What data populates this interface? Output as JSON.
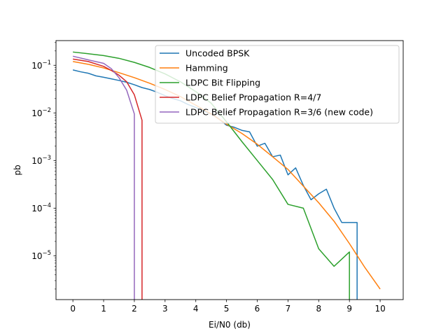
{
  "chart_data": {
    "type": "line",
    "title": "",
    "xlabel": "Ei/N0 (db)",
    "ylabel": "pb",
    "xlim": [
      -0.55,
      10.75
    ],
    "ylim": [
      1.2e-06,
      0.33
    ],
    "yscale": "log",
    "grid": false,
    "legend_position": "top-right",
    "xticks": [
      "0",
      "1",
      "2",
      "3",
      "4",
      "5",
      "6",
      "7",
      "8",
      "9",
      "10"
    ],
    "yticks": [
      {
        "value": 0.1,
        "base": "10",
        "exp": "−1"
      },
      {
        "value": 0.01,
        "base": "10",
        "exp": "−2"
      },
      {
        "value": 0.001,
        "base": "10",
        "exp": "−3"
      },
      {
        "value": 0.0001,
        "base": "10",
        "exp": "−4"
      },
      {
        "value": 1e-05,
        "base": "10",
        "exp": "−5"
      }
    ],
    "series": [
      {
        "name": "Uncoded BPSK",
        "color": "#1f77b4",
        "x": [
          0,
          0.25,
          0.5,
          0.75,
          1.0,
          1.25,
          1.5,
          1.75,
          2.0,
          2.25,
          2.5,
          2.75,
          3.0,
          3.25,
          3.5,
          3.75,
          4.0,
          4.25,
          4.5,
          4.75,
          5.0,
          5.25,
          5.5,
          5.75,
          6.0,
          6.25,
          6.5,
          6.75,
          7.0,
          7.25,
          7.5,
          7.75,
          8.0,
          8.25,
          8.5,
          8.75,
          9.0,
          9.25,
          9.25
        ],
        "y": [
          0.08,
          0.073,
          0.068,
          0.06,
          0.056,
          0.052,
          0.048,
          0.044,
          0.039,
          0.034,
          0.031,
          0.027,
          0.023,
          0.02,
          0.018,
          0.015,
          0.013,
          0.011,
          0.0095,
          0.0075,
          0.0055,
          0.005,
          0.0043,
          0.004,
          0.002,
          0.0023,
          0.0012,
          0.0013,
          0.0005,
          0.0007,
          0.0003,
          0.00015,
          0.0002,
          0.00025,
          0.0001,
          5e-05,
          5e-05,
          5e-05,
          1e-06
        ]
      },
      {
        "name": "Hamming",
        "color": "#ff7f0e",
        "x": [
          0,
          0.5,
          1.0,
          1.5,
          2.0,
          2.5,
          3.0,
          3.5,
          4.0,
          4.5,
          5.0,
          5.5,
          6.0,
          6.5,
          7.0,
          7.5,
          8.0,
          8.5,
          9.0,
          9.5,
          10.0
        ],
        "y": [
          0.12,
          0.105,
          0.088,
          0.07,
          0.055,
          0.042,
          0.031,
          0.022,
          0.0145,
          0.0095,
          0.0058,
          0.0037,
          0.0022,
          0.0012,
          0.00065,
          0.00029,
          0.00013,
          5.3e-05,
          1.8e-05,
          5.7e-06,
          2e-06
        ]
      },
      {
        "name": "LDPC Bit Flipping",
        "color": "#2ca02c",
        "x": [
          0,
          0.5,
          1.0,
          1.5,
          2.0,
          2.5,
          3.0,
          3.5,
          4.0,
          4.5,
          5.0,
          5.5,
          6.0,
          6.5,
          7.0,
          7.5,
          8.0,
          8.5,
          9.0,
          9.0
        ],
        "y": [
          0.19,
          0.175,
          0.16,
          0.14,
          0.115,
          0.09,
          0.066,
          0.045,
          0.028,
          0.016,
          0.0065,
          0.0025,
          0.001,
          0.0004,
          0.00012,
          0.0001,
          1.4e-05,
          6e-06,
          1.2e-05,
          1e-06
        ]
      },
      {
        "name": "LDPC Belief Propagation R=4/7",
        "color": "#d62728",
        "x": [
          0,
          0.5,
          1.0,
          1.25,
          1.5,
          1.75,
          2.0,
          2.25,
          2.25
        ],
        "y": [
          0.135,
          0.12,
          0.095,
          0.078,
          0.062,
          0.045,
          0.024,
          0.007,
          1e-06
        ]
      },
      {
        "name": "LDPC Belief Propagation R=3/6 (new code)",
        "color": "#9467bd",
        "x": [
          0,
          0.5,
          1.0,
          1.25,
          1.5,
          1.75,
          2.0,
          2.0
        ],
        "y": [
          0.155,
          0.13,
          0.11,
          0.085,
          0.055,
          0.03,
          0.0095,
          1e-06
        ]
      }
    ]
  }
}
